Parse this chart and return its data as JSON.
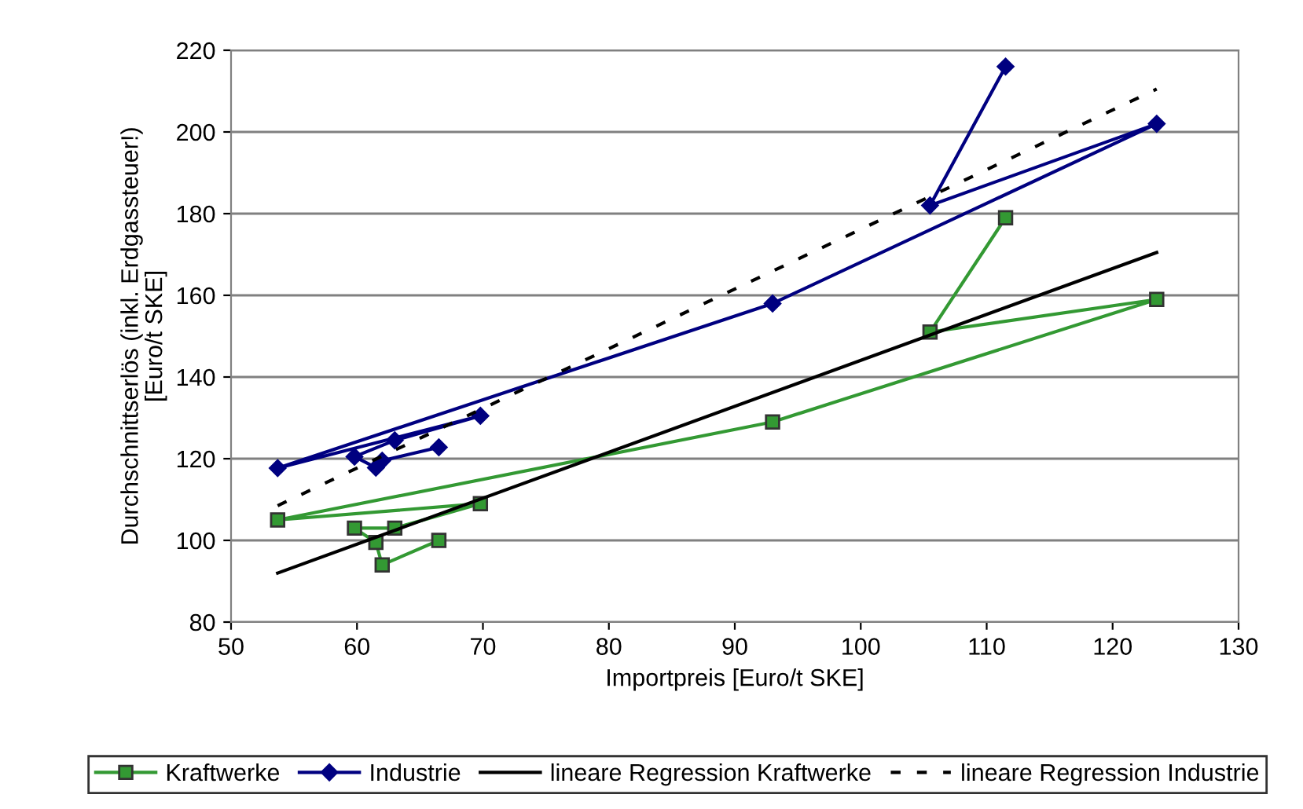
{
  "chart_data": {
    "type": "line",
    "xlabel": "Importpreis [Euro/t SKE]",
    "ylabel": "Durchschnittserlös (inkl. Erdgassteuer!)\n[Euro/t SKE]",
    "xlim": [
      50,
      130
    ],
    "xticks": [
      50,
      60,
      70,
      80,
      90,
      100,
      110,
      120,
      130
    ],
    "ylim": [
      80,
      220
    ],
    "yticks": [
      80,
      100,
      120,
      140,
      160,
      180,
      200,
      220
    ],
    "grid": "y",
    "legend": "bottom",
    "series": [
      {
        "name": "Kraftwerke",
        "color": "#339933",
        "marker": "square",
        "x": [
          66.5,
          62,
          61.5,
          59.8,
          63,
          69.8,
          53.7,
          93,
          123.5,
          105.5,
          111.5
        ],
        "values": [
          100,
          94,
          99.5,
          103,
          103,
          109,
          105,
          129,
          159,
          151,
          179
        ]
      },
      {
        "name": "Industrie",
        "color": "#000080",
        "marker": "diamond",
        "x": [
          66.5,
          62,
          61.5,
          59.8,
          63,
          69.8,
          53.7,
          93,
          123.5,
          105.5,
          111.5
        ],
        "values": [
          122.8,
          119.5,
          117.8,
          120.5,
          124.5,
          130.5,
          117.7,
          158,
          202,
          182,
          216
        ]
      },
      {
        "name": "lineare Regression Kraftwerke",
        "color": "#000000",
        "marker": "none",
        "line_style": "solid",
        "x": [
          53.7,
          123.5
        ],
        "values": [
          92,
          170.5
        ]
      },
      {
        "name": "lineare Regression Industrie",
        "color": "#000000",
        "marker": "none",
        "line_style": "dashed",
        "x": [
          53.7,
          123.5
        ],
        "values": [
          108.5,
          210.5
        ]
      }
    ]
  }
}
